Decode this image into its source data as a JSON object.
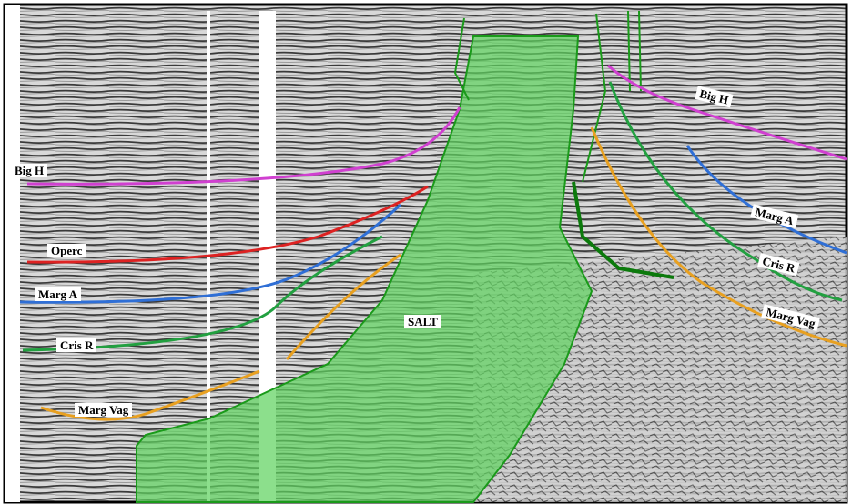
{
  "labels": {
    "left": [
      "Big H",
      "Operc",
      "Marg A",
      "Cris R",
      "Marg Vag"
    ],
    "salt": "SALT",
    "right": [
      "Big H",
      "Marg A",
      "Cris R",
      "Marg Vag"
    ]
  }
}
